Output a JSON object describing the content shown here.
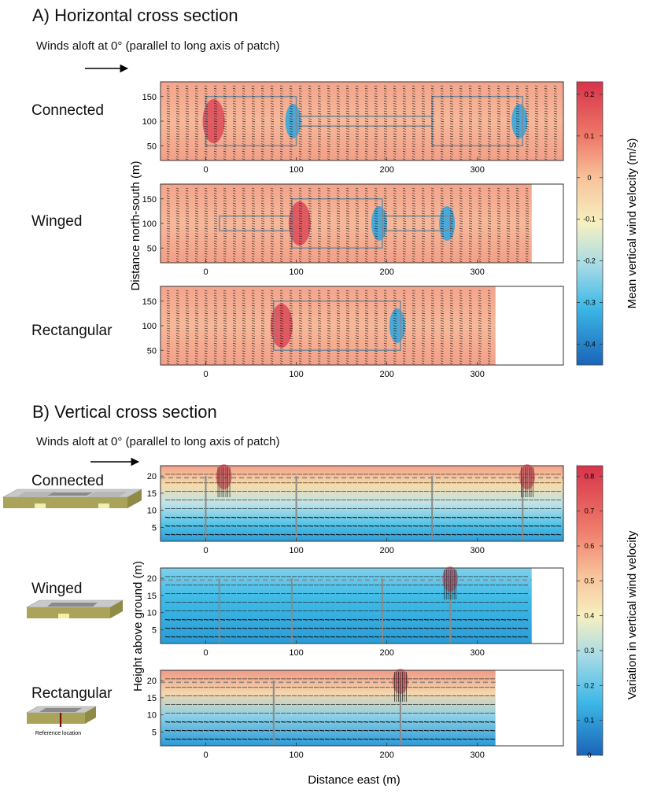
{
  "sections": [
    {
      "title": "A) Horizontal cross section",
      "winds_text": "Winds aloft at 0° (parallel to long axis of patch)"
    },
    {
      "title": "B) Vertical cross section",
      "winds_text": "Winds aloft at 0° (parallel to long axis of patch)"
    }
  ],
  "row_labels": [
    "Connected",
    "Winged",
    "Rectangular"
  ],
  "inset_caption": "Reference location",
  "colors": {
    "warm": "#d7334a",
    "neutral": "#f6f0c0",
    "cool": "#1e6fc0",
    "vector": "#111111",
    "outline": "#888888"
  },
  "chart_data": [
    {
      "type": "heatmap",
      "title": "A) Horizontal cross section",
      "panels": [
        "Connected",
        "Winged",
        "Rectangular"
      ],
      "xlabel": "",
      "ylabel": "Distance north-south (m)",
      "xticks": [
        0,
        100,
        200,
        300
      ],
      "yticks": [
        50,
        100,
        150
      ],
      "xlim": [
        -50,
        395
      ],
      "ylim": [
        20,
        180
      ],
      "field_x_end": [
        395,
        360,
        320
      ],
      "colorbar": {
        "label": "Mean vertical wind velocity (m/s)",
        "ticks": [
          0.2,
          0.1,
          0,
          -0.1,
          -0.2,
          -0.3,
          -0.4
        ],
        "range": [
          -0.45,
          0.23
        ]
      },
      "patch_outlines": {
        "Connected": [
          {
            "x": [
              0,
              100
            ],
            "y": [
              50,
              150
            ]
          },
          {
            "x": [
              100,
              250
            ],
            "y": [
              90,
              110
            ]
          },
          {
            "x": [
              250,
              350
            ],
            "y": [
              50,
              150
            ]
          }
        ],
        "Winged": [
          {
            "x": [
              15,
              95
            ],
            "y": [
              85,
              115
            ]
          },
          {
            "x": [
              95,
              195
            ],
            "y": [
              50,
              150
            ]
          },
          {
            "x": [
              195,
              270
            ],
            "y": [
              85,
              115
            ]
          }
        ],
        "Rectangular": [
          {
            "x": [
              75,
              215
            ],
            "y": [
              50,
              150
            ]
          }
        ]
      },
      "updraft_x": {
        "Connected": 0,
        "Winged": 95,
        "Rectangular": 75
      },
      "downdraft_x": {
        "Connected": [
          100,
          350
        ],
        "Winged": [
          195,
          270
        ],
        "Rectangular": [
          215
        ]
      }
    },
    {
      "type": "heatmap",
      "title": "B) Vertical cross section",
      "panels": [
        "Connected",
        "Winged",
        "Rectangular"
      ],
      "xlabel": "Distance east (m)",
      "ylabel": "Height above ground (m)",
      "xticks": [
        0,
        100,
        200,
        300
      ],
      "yticks": [
        5,
        10,
        15,
        20
      ],
      "xlim": [
        -50,
        395
      ],
      "ylim": [
        1,
        23
      ],
      "field_x_end": [
        395,
        360,
        320
      ],
      "colorbar": {
        "label": "Variation in vertical wind velocity",
        "ticks": [
          0.8,
          0.7,
          0.6,
          0.5,
          0.4,
          0.3,
          0.2,
          0.1,
          0
        ],
        "range": [
          0,
          0.83
        ]
      },
      "canopy_lines": {
        "Connected": [
          0,
          100,
          250,
          350
        ],
        "Winged": [
          15,
          95,
          195,
          270
        ],
        "Rectangular": [
          75,
          215
        ]
      },
      "gusts_x": {
        "Connected": [
          20,
          355
        ],
        "Winged": [
          270
        ],
        "Rectangular": [
          215
        ]
      }
    }
  ]
}
